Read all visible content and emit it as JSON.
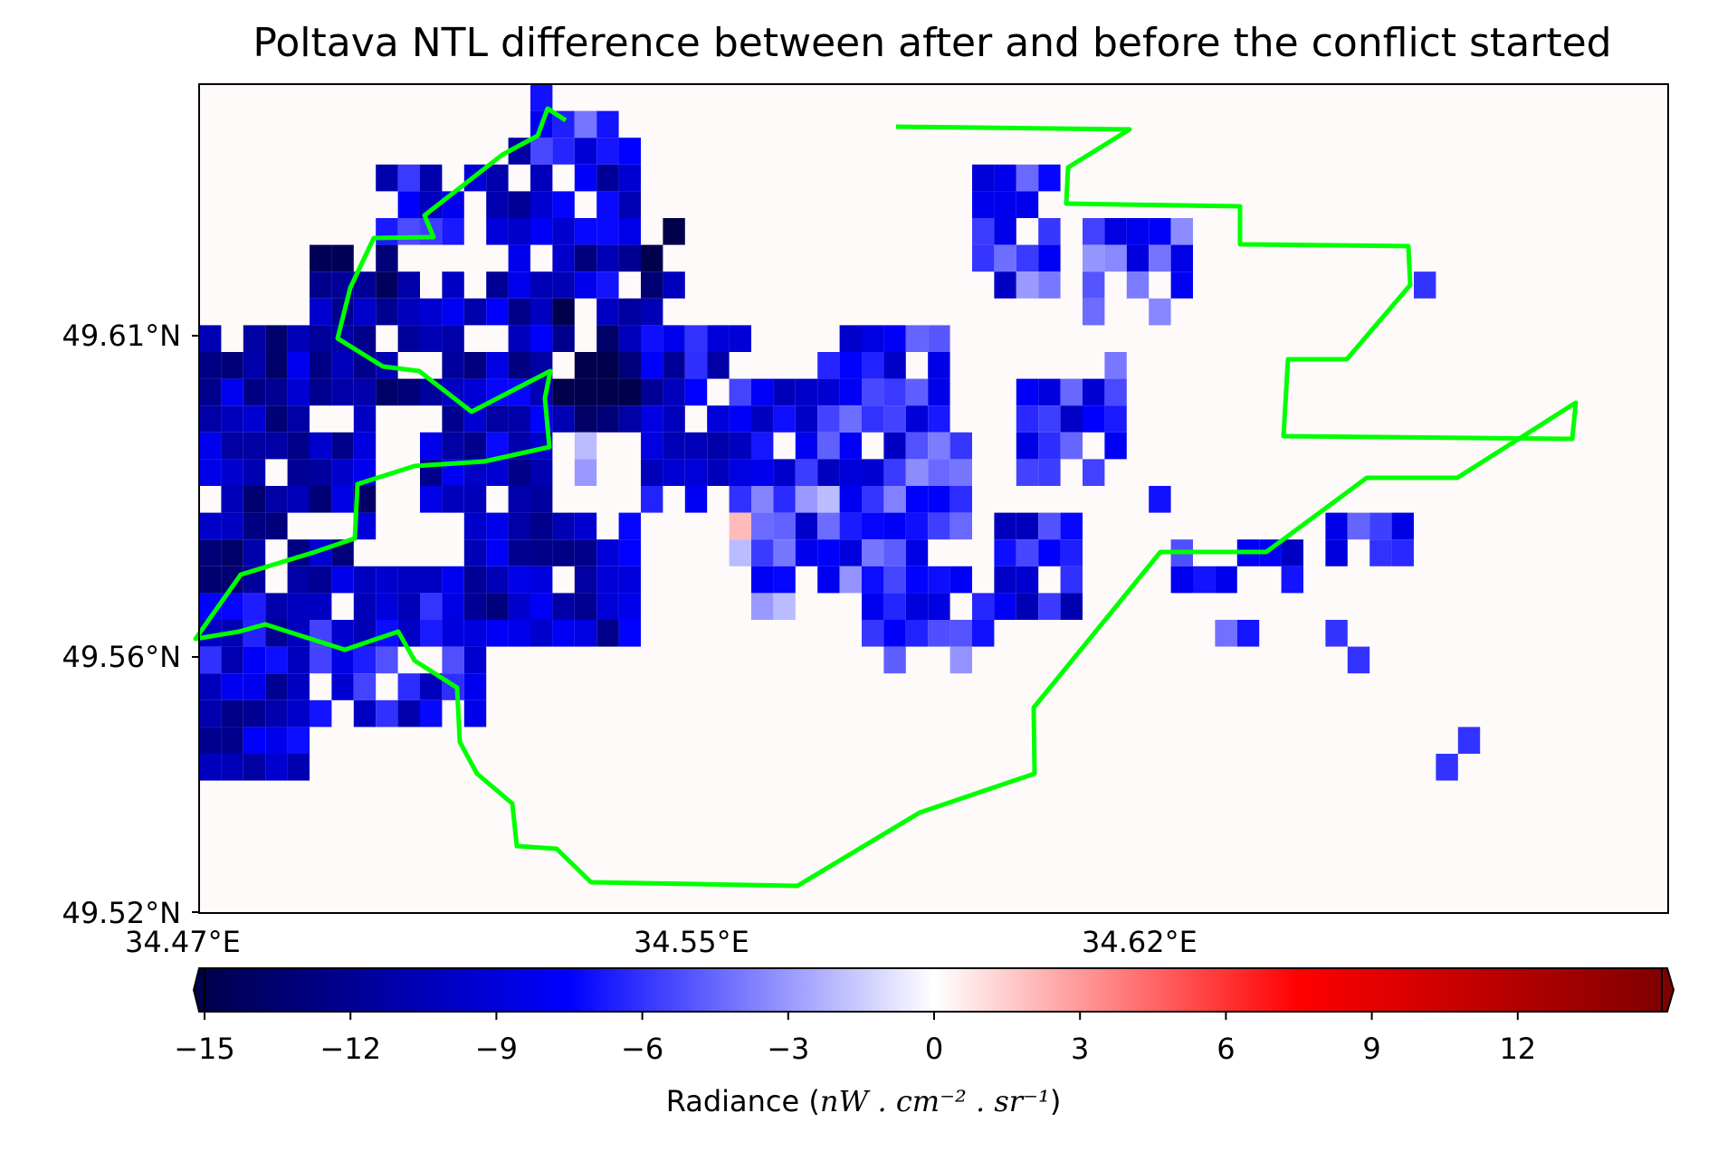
{
  "title": "Poltava NTL difference between after and before the conflict started",
  "y_tick_labels": [
    "49.61°N",
    "49.56°N",
    "49.52°N"
  ],
  "x_tick_labels": [
    "34.47°E",
    "34.55°E",
    "34.62°E"
  ],
  "colorbar": {
    "label_prefix": "Radiance (",
    "label_suffix": ")",
    "label_units": "nW . cm⁻² . sr⁻¹",
    "min": -15,
    "max": 15,
    "ticks": [
      "−15",
      "−12",
      "−9",
      "−6",
      "−3",
      "0",
      "3",
      "6",
      "9",
      "12"
    ],
    "colormap": "seismic",
    "extend": "both"
  },
  "colors": {
    "boundary": "#00ff00",
    "background": "#fffafa"
  },
  "chart_data": {
    "type": "heatmap",
    "title": "Poltava NTL difference between after and before the conflict started",
    "xlabel": "",
    "ylabel": "",
    "value_range": [
      -15,
      15
    ],
    "note_values": "radiance difference per pixel (blue = decrease, red = increase)",
    "boundary_region": "Poltava"
  }
}
